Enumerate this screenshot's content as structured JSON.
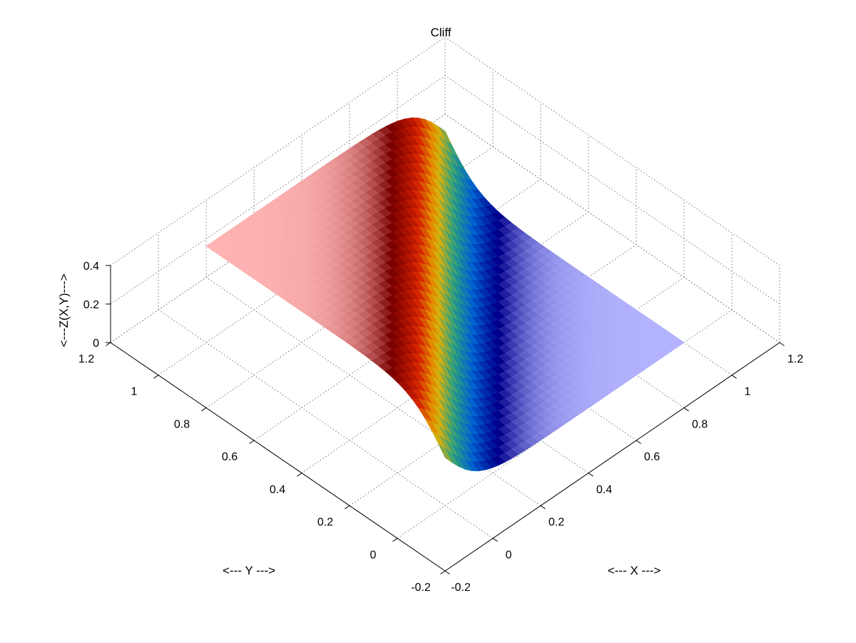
{
  "chart_data": {
    "type": "surface",
    "title": "Cliff",
    "xlabel": "<--- X --->",
    "ylabel": "<--- Y --->",
    "zlabel": "<---Z(X,Y)--->",
    "xlim": [
      -0.2,
      1.2
    ],
    "ylim": [
      -0.2,
      1.2
    ],
    "zlim": [
      0,
      0.4
    ],
    "x_ticks": [
      "-0.2",
      "0",
      "0.2",
      "0.4",
      "0.6",
      "0.8",
      "1",
      "1.2"
    ],
    "y_ticks": [
      "-0.2",
      "0",
      "0.2",
      "0.4",
      "0.6",
      "0.8",
      "1",
      "1.2"
    ],
    "z_ticks": [
      "0",
      "0.2",
      "0.4"
    ],
    "grid": true,
    "colormap": [
      "#ffb3b3",
      "#7a0000",
      "#d42000",
      "#e8b000",
      "#2aa080",
      "#0060d0",
      "#00008c",
      "#b3b3ff"
    ],
    "surface_domain": {
      "x": [
        0,
        1
      ],
      "y": [
        0,
        1
      ]
    },
    "surface_function": "tanh cliff along the line x - y = 0, value ~0.5 on the red side and ~0 on the blue side"
  }
}
